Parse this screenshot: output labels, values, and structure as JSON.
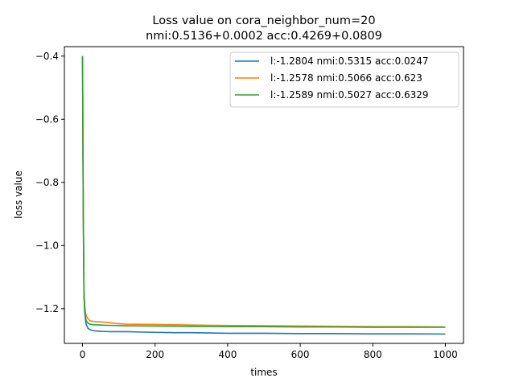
{
  "chart_data": {
    "type": "line",
    "title_line1": "Loss value on cora_neighbor_num=20",
    "title_line2": "nmi:0.5136+0.0002 acc:0.4269+0.0809",
    "xlabel": "times",
    "ylabel": "loss value",
    "xlim": [
      -50,
      1050
    ],
    "ylim": [
      -1.31,
      -0.37
    ],
    "xticks": [
      0,
      200,
      400,
      600,
      800,
      1000
    ],
    "xtick_labels": [
      "0",
      "200",
      "400",
      "600",
      "800",
      "1000"
    ],
    "yticks": [
      -1.2,
      -1.0,
      -0.8,
      -0.6,
      -0.4
    ],
    "ytick_labels": [
      "−1.2",
      "−1.0",
      "−0.8",
      "−0.6",
      "−0.4"
    ],
    "legend_position": "top-right",
    "series": [
      {
        "name": "l:-1.2804 nmi:0.5315 acc:0.0247",
        "color": "#1f77b4",
        "x": [
          0,
          2,
          4,
          6,
          8,
          10,
          15,
          20,
          30,
          50,
          80,
          120,
          160,
          200,
          250,
          300,
          350,
          400,
          500,
          600,
          700,
          800,
          900,
          1000
        ],
        "y": [
          -0.4,
          -0.9,
          -1.16,
          -1.21,
          -1.235,
          -1.25,
          -1.262,
          -1.266,
          -1.27,
          -1.272,
          -1.273,
          -1.273,
          -1.274,
          -1.275,
          -1.276,
          -1.276,
          -1.277,
          -1.278,
          -1.278,
          -1.279,
          -1.279,
          -1.28,
          -1.28,
          -1.2804
        ]
      },
      {
        "name": "l:-1.2578 nmi:0.5066 acc:0.623",
        "color": "#ff7f0e",
        "x": [
          0,
          2,
          4,
          6,
          8,
          10,
          15,
          20,
          30,
          50,
          70,
          90,
          120,
          200,
          300,
          400,
          500,
          600,
          700,
          800,
          900,
          1000
        ],
        "y": [
          -0.4,
          -0.88,
          -1.14,
          -1.19,
          -1.21,
          -1.222,
          -1.232,
          -1.238,
          -1.241,
          -1.242,
          -1.244,
          -1.247,
          -1.249,
          -1.25,
          -1.252,
          -1.253,
          -1.254,
          -1.255,
          -1.256,
          -1.257,
          -1.257,
          -1.2578
        ]
      },
      {
        "name": "l:-1.2589 nmi:0.5027 acc:0.6329",
        "color": "#2ca02c",
        "x": [
          0,
          2,
          4,
          6,
          8,
          10,
          15,
          20,
          30,
          50,
          80,
          120,
          200,
          300,
          400,
          500,
          600,
          700,
          800,
          900,
          1000
        ],
        "y": [
          -0.4,
          -0.89,
          -1.15,
          -1.2,
          -1.225,
          -1.238,
          -1.246,
          -1.249,
          -1.251,
          -1.252,
          -1.253,
          -1.254,
          -1.255,
          -1.256,
          -1.257,
          -1.257,
          -1.258,
          -1.258,
          -1.259,
          -1.259,
          -1.2589
        ]
      }
    ]
  }
}
